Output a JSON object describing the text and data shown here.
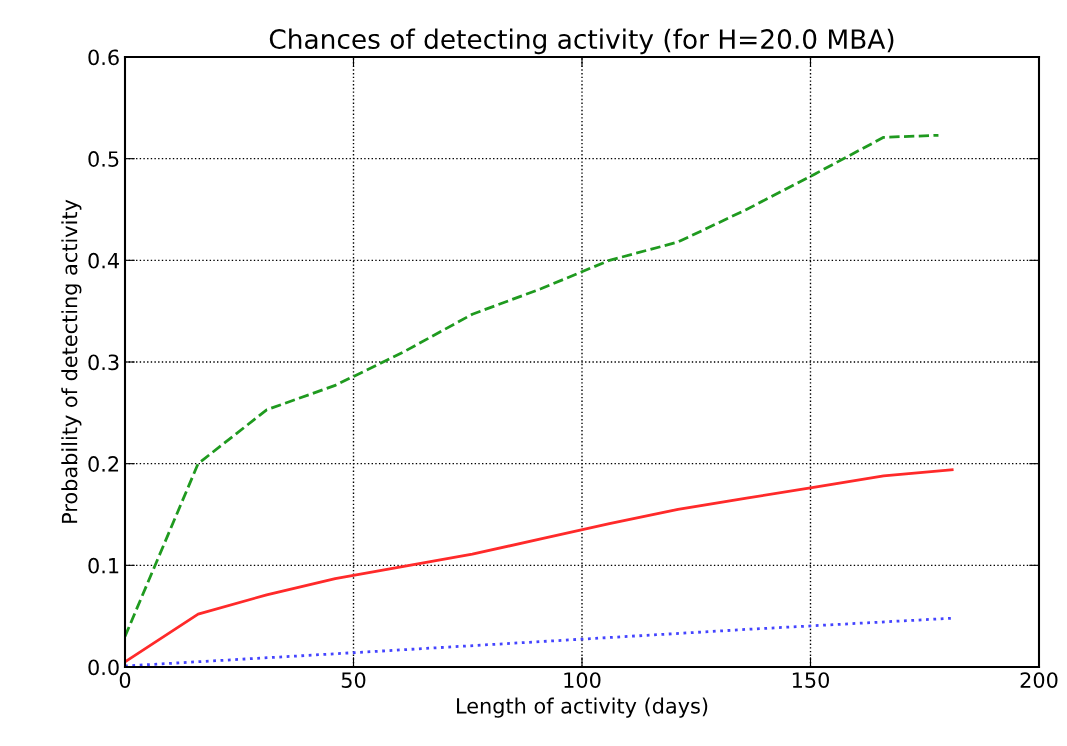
{
  "chart_data": {
    "type": "line",
    "title": "Chances of detecting activity (for H=20.0 MBA)",
    "xlabel": "Length of activity (days)",
    "ylabel": "Probability of detecting activity",
    "series": [
      {
        "color": "#1f9a1f",
        "line_style": "dashed",
        "x": [
          0,
          16,
          31,
          46,
          61,
          76,
          91,
          106,
          121,
          136,
          151,
          166,
          178
        ],
        "values": [
          0.03,
          0.2,
          0.253,
          0.277,
          0.31,
          0.347,
          0.372,
          0.4,
          0.418,
          0.45,
          0.485,
          0.521,
          0.523
        ]
      },
      {
        "color": "#ff2a2a",
        "line_style": "solid",
        "x": [
          0,
          16,
          31,
          46,
          61,
          76,
          91,
          106,
          121,
          136,
          151,
          166,
          181
        ],
        "values": [
          0.005,
          0.052,
          0.071,
          0.087,
          0.099,
          0.111,
          0.126,
          0.141,
          0.155,
          0.166,
          0.177,
          0.188,
          0.194
        ]
      },
      {
        "color": "#4444ff",
        "line_style": "dotted",
        "x": [
          0,
          46,
          91,
          136,
          181
        ],
        "values": [
          0.001,
          0.013,
          0.025,
          0.037,
          0.048
        ]
      }
    ],
    "xlim": [
      0,
      200
    ],
    "xticks": [
      0,
      50,
      100,
      150,
      200
    ],
    "ylim": [
      0,
      0.6
    ],
    "yticks": [
      {
        "value": 0,
        "label": "0.0"
      },
      0.1,
      0.2,
      0.3,
      0.4,
      0.5,
      0.6
    ],
    "grid": true
  }
}
